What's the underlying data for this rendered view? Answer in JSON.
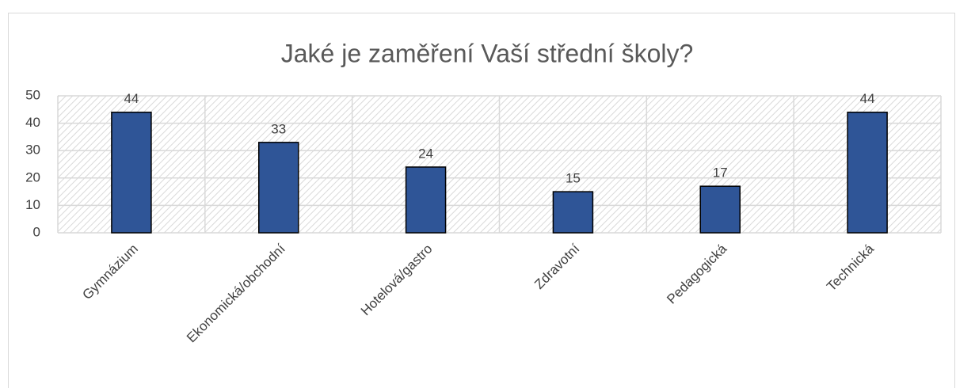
{
  "chart_data": {
    "type": "bar",
    "title": "Jaké je zaměření Vaší střední školy?",
    "categories": [
      "Gymnázium",
      "Ekonomická/obchodní",
      "Hotelová/gastro",
      "Zdravotní",
      "Pedagogická",
      "Technická"
    ],
    "values": [
      44,
      33,
      24,
      15,
      17,
      44
    ],
    "color": "#2f5597",
    "ylim": [
      0,
      50
    ],
    "yticks": [
      0,
      10,
      20,
      30,
      40,
      50
    ],
    "grid": true
  }
}
